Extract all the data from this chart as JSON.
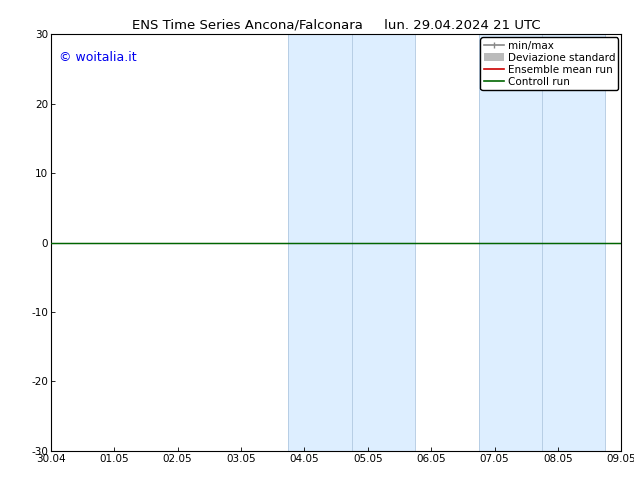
{
  "title_left": "ENS Time Series Ancona/Falconara",
  "title_right": "lun. 29.04.2024 21 UTC",
  "title_fontsize": 9.5,
  "watermark": "© woitalia.it",
  "watermark_color": "#0000ee",
  "watermark_fontsize": 9,
  "xlim_dates": [
    "30.04",
    "01.05",
    "02.05",
    "03.05",
    "04.05",
    "05.05",
    "06.05",
    "07.05",
    "08.05",
    "09.05"
  ],
  "xlim_min": 0,
  "xlim_max": 9,
  "ylim_min": -30,
  "ylim_max": 30,
  "yticks": [
    -30,
    -20,
    -10,
    0,
    10,
    20,
    30
  ],
  "y_zero_line": 0,
  "shaded_regions": [
    {
      "x_start": 3.75,
      "x_end": 5.75,
      "color": "#ddeeff"
    },
    {
      "x_start": 6.75,
      "x_end": 8.75,
      "color": "#ddeeff"
    }
  ],
  "shade_vlines": [
    3.75,
    4.75,
    5.75,
    6.75,
    7.75,
    8.75
  ],
  "shade_vline_color": "#b0c8e0",
  "shade_vline_lw": 0.6,
  "control_run_y": 0,
  "control_run_color": "#006600",
  "control_run_lw": 1.0,
  "legend_fontsize": 7.5,
  "legend_minmax_color": "#888888",
  "legend_dev_color": "#bbbbbb",
  "legend_ens_color": "#cc0000",
  "legend_ctrl_color": "#006600",
  "background_color": "#ffffff",
  "tick_fontsize": 7.5,
  "tick_color": "#000000",
  "spine_color": "#000000",
  "spine_lw": 0.8,
  "zero_line_color": "#000000",
  "zero_line_lw": 0.8
}
